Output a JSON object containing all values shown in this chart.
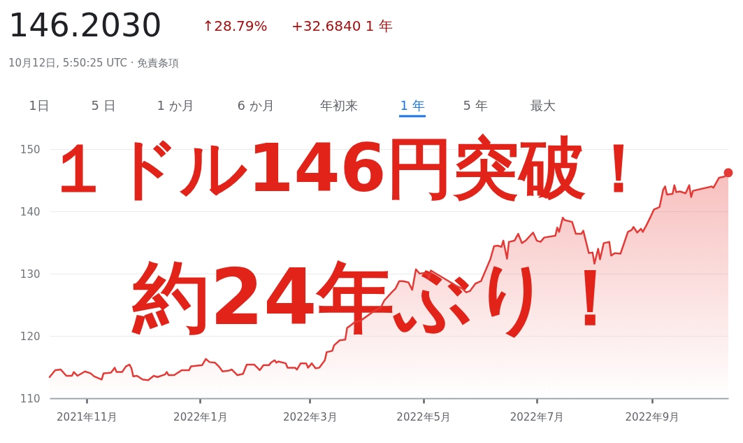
{
  "chart_data": {
    "type": "area",
    "title": "146.2030",
    "subtitle": "10月12日, 5:50:25 UTC · 免責条項",
    "annotations": [
      "↑28.79%",
      "+32.6840 1 年",
      "1日",
      "5 日",
      "1 か月",
      "6 か月",
      "年初来",
      "1 年",
      "5 年",
      "最大",
      "１ドル146円突破！",
      "約24年ぶり！"
    ],
    "xlim": [
      "2021-10-12",
      "2022-10-12"
    ],
    "xticks": [
      {
        "value": "2021-11-01",
        "label": "2021年11月"
      },
      {
        "value": "2022-01-01",
        "label": "2022年1月"
      },
      {
        "value": "2022-03-01",
        "label": "2022年3月"
      },
      {
        "value": "2022-05-01",
        "label": "2022年5月"
      },
      {
        "value": "2022-07-01",
        "label": "2022年7月"
      },
      {
        "value": "2022-09-01",
        "label": "2022年9月"
      }
    ],
    "ylim": [
      110,
      150
    ],
    "yticks": [
      110,
      120,
      130,
      140,
      150
    ],
    "grid": "y",
    "series": [
      {
        "color": "#e53935",
        "x": [
          "2021-10-12",
          "2021-10-15",
          "2021-10-18",
          "2021-10-21",
          "2021-10-24",
          "2021-10-25",
          "2021-10-27",
          "2021-10-31",
          "2021-11-03",
          "2021-11-05",
          "2021-11-09",
          "2021-11-10",
          "2021-11-14",
          "2021-11-16",
          "2021-11-17",
          "2021-11-20",
          "2021-11-22",
          "2021-11-24",
          "2021-11-25",
          "2021-11-26",
          "2021-11-28",
          "2021-12-01",
          "2021-12-04",
          "2021-12-07",
          "2021-12-09",
          "2021-12-13",
          "2021-12-14",
          "2021-12-15",
          "2021-12-18",
          "2021-12-22",
          "2021-12-26",
          "2021-12-27",
          "2022-01-02",
          "2022-01-04",
          "2022-01-06",
          "2022-01-09",
          "2022-01-11",
          "2022-01-13",
          "2022-01-16",
          "2022-01-18",
          "2022-01-21",
          "2022-01-24",
          "2022-01-26",
          "2022-01-30",
          "2022-02-02",
          "2022-02-04",
          "2022-02-07",
          "2022-02-08",
          "2022-02-10",
          "2022-02-11",
          "2022-02-12",
          "2022-02-16",
          "2022-02-17",
          "2022-02-21",
          "2022-02-22",
          "2022-02-24",
          "2022-02-27",
          "2022-02-28",
          "2022-03-02",
          "2022-03-04",
          "2022-03-06",
          "2022-03-09",
          "2022-03-10",
          "2022-03-13",
          "2022-03-14",
          "2022-03-17",
          "2022-03-20",
          "2022-03-21",
          "2022-03-22",
          "2022-03-25",
          "2022-03-28",
          "2022-04-05",
          "2022-04-08",
          "2022-04-10",
          "2022-04-14",
          "2022-04-16",
          "2022-04-18",
          "2022-04-20",
          "2022-04-23",
          "2022-04-25",
          "2022-04-27",
          "2022-04-29",
          "2022-05-01",
          "2022-05-03",
          "2022-05-04",
          "2022-05-05",
          "2022-05-19",
          "2022-05-22",
          "2022-05-24",
          "2022-05-26",
          "2022-05-29",
          "2022-06-01",
          "2022-06-04",
          "2022-06-06",
          "2022-06-08",
          "2022-06-10",
          "2022-06-12",
          "2022-06-13",
          "2022-06-15",
          "2022-06-16",
          "2022-06-19",
          "2022-06-21",
          "2022-06-23",
          "2022-06-25",
          "2022-06-29",
          "2022-07-01",
          "2022-07-03",
          "2022-07-05",
          "2022-07-11",
          "2022-07-12",
          "2022-07-13",
          "2022-07-15",
          "2022-07-16",
          "2022-07-20",
          "2022-07-22",
          "2022-07-25",
          "2022-07-26",
          "2022-07-29",
          "2022-07-31",
          "2022-08-01",
          "2022-08-03",
          "2022-08-04",
          "2022-08-06",
          "2022-08-09",
          "2022-08-10",
          "2022-08-12",
          "2022-08-15",
          "2022-08-19",
          "2022-08-21",
          "2022-08-22",
          "2022-08-24",
          "2022-08-26",
          "2022-08-27",
          "2022-08-29",
          "2022-08-31",
          "2022-09-02",
          "2022-09-05",
          "2022-09-07",
          "2022-09-08",
          "2022-09-09",
          "2022-09-12",
          "2022-09-13",
          "2022-09-14",
          "2022-09-16",
          "2022-09-19",
          "2022-09-21",
          "2022-09-22",
          "2022-09-23",
          "2022-10-03",
          "2022-10-04",
          "2022-10-07",
          "2022-10-10",
          "2022-10-12"
        ],
        "values": [
          113.4,
          114.5,
          114.6,
          113.6,
          113.6,
          114.2,
          113.6,
          114.3,
          114.0,
          113.5,
          113.0,
          114.0,
          114.1,
          114.9,
          114.2,
          114.2,
          115.1,
          115.4,
          114.8,
          113.5,
          113.6,
          113.0,
          112.9,
          113.6,
          113.4,
          113.8,
          114.2,
          113.7,
          113.7,
          114.5,
          114.5,
          115.1,
          115.3,
          116.3,
          115.8,
          115.7,
          115.1,
          114.3,
          114.4,
          114.6,
          113.7,
          113.9,
          115.4,
          115.4,
          114.5,
          115.3,
          115.3,
          115.7,
          116.1,
          115.7,
          115.9,
          115.6,
          114.9,
          114.9,
          114.6,
          115.6,
          115.6,
          114.9,
          115.6,
          114.8,
          114.9,
          116.1,
          117.4,
          117.6,
          118.5,
          119.3,
          119.4,
          121.3,
          121.5,
          122.2,
          122.4,
          124.1,
          124.5,
          125.7,
          127.0,
          127.6,
          128.8,
          128.8,
          128.6,
          127.4,
          130.7,
          130.0,
          130.1,
          130.0,
          129.2,
          130.5,
          128.0,
          127.6,
          127.0,
          127.2,
          128.4,
          128.8,
          130.9,
          132.3,
          134.4,
          134.5,
          134.3,
          135.3,
          132.4,
          135.1,
          135.3,
          136.4,
          134.9,
          135.3,
          136.6,
          135.3,
          135.1,
          135.8,
          136.1,
          137.4,
          136.7,
          139.0,
          138.6,
          138.3,
          136.4,
          136.4,
          136.9,
          133.3,
          133.4,
          131.6,
          134.0,
          132.3,
          134.9,
          135.1,
          132.9,
          133.3,
          133.2,
          136.7,
          137.0,
          137.5,
          136.6,
          137.2,
          136.7,
          137.8,
          139.0,
          140.3,
          140.7,
          143.5,
          144.0,
          142.7,
          142.8,
          144.2,
          143.1,
          143.2,
          142.9,
          144.2,
          142.3,
          143.3,
          144.0,
          143.8,
          145.4,
          145.6,
          146.2
        ]
      },
      {
        "type": "scatter",
        "color": "#e53935",
        "x": [
          "2022-10-12"
        ],
        "values": [
          146.2
        ]
      }
    ]
  }
}
